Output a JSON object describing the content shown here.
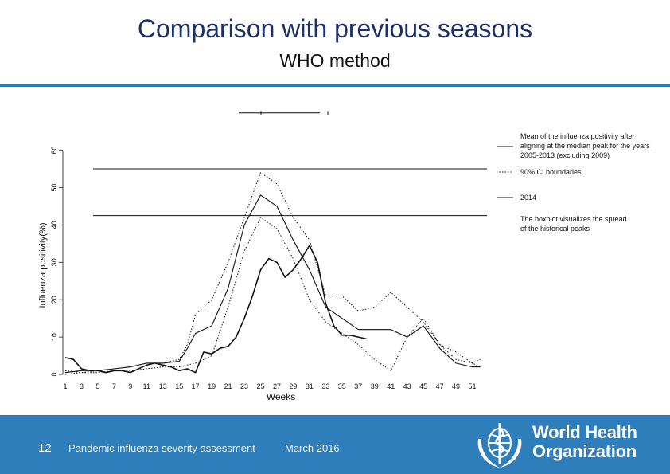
{
  "header": {
    "title": "Comparison with previous seasons",
    "subtitle": "WHO method"
  },
  "footer": {
    "page_number": "12",
    "text": "Pandemic influenza severity assessment",
    "date": "March 2016",
    "org_name_line1": "World Health",
    "org_name_line2": "Organization",
    "logo_icon": "who-emblem-icon"
  },
  "colors": {
    "title": "#1c2f66",
    "accent_rule": "#2f79b9",
    "footer_bg": "#2f7ebc"
  },
  "chart_data": {
    "type": "line",
    "xlabel": "Weeks",
    "ylabel": "Influenza positivity(%)",
    "xlim": [
      1,
      52
    ],
    "ylim": [
      0,
      60
    ],
    "x_ticks": [
      1,
      3,
      5,
      7,
      9,
      11,
      13,
      15,
      17,
      19,
      21,
      23,
      25,
      27,
      29,
      31,
      33,
      35,
      37,
      39,
      41,
      43,
      45,
      47,
      49,
      51
    ],
    "y_ticks": [
      0,
      10,
      20,
      30,
      40,
      50,
      60
    ],
    "reference_lines": [
      55,
      42.5
    ],
    "legend": [
      {
        "style": "solid",
        "label_lines": [
          "Mean of the influenza positivity after",
          "aligning at the median peak for the years",
          "2005-2013 (excluding 2009)"
        ]
      },
      {
        "style": "dotted",
        "label_lines": [
          "90% CI boundaries"
        ]
      },
      {
        "style": "solid",
        "label_lines": [
          "2014"
        ]
      },
      {
        "style": "none",
        "label_lines": [
          "The boxplot visualizes the spread",
          "of the historical peaks"
        ]
      }
    ],
    "boxplot": {
      "min": 69.5,
      "max": 70.5,
      "value": 70
    },
    "series": [
      {
        "style": "dotted",
        "x": [
          1,
          3,
          5,
          7,
          9,
          11,
          13,
          15,
          16,
          17,
          19,
          21,
          23,
          25,
          27,
          29,
          31,
          33,
          35,
          37,
          39,
          41,
          43,
          45,
          47,
          49,
          51,
          52
        ],
        "y": [
          1,
          0.5,
          1,
          1.5,
          2,
          3,
          3,
          4,
          8,
          16,
          20,
          30,
          42,
          54,
          51,
          42,
          36,
          21,
          21,
          17,
          18,
          22,
          18,
          14,
          8,
          4,
          3,
          4
        ]
      },
      {
        "style": "solid",
        "x": [
          1,
          3,
          5,
          7,
          9,
          11,
          13,
          15,
          16,
          17,
          19,
          21,
          23,
          25,
          27,
          29,
          31,
          33,
          35,
          37,
          39,
          41,
          43,
          45,
          47,
          49,
          51,
          52
        ],
        "y": [
          0.5,
          1,
          1,
          1.5,
          2,
          3,
          3,
          3.5,
          7,
          11,
          13,
          23,
          40,
          48,
          45,
          36,
          28,
          18,
          15,
          12,
          12,
          12,
          10,
          13,
          7,
          3,
          2,
          2
        ]
      },
      {
        "style": "dotted",
        "x": [
          1,
          3,
          5,
          7,
          9,
          11,
          13,
          15,
          17,
          19,
          21,
          23,
          25,
          27,
          29,
          31,
          33,
          35,
          37,
          39,
          41,
          43,
          45,
          47,
          49,
          51,
          52
        ],
        "y": [
          0,
          0.5,
          0.5,
          1,
          1,
          1.5,
          2,
          2,
          3,
          5,
          18,
          33,
          42,
          39,
          31,
          20,
          14,
          11,
          8,
          4,
          1,
          10,
          15,
          8,
          6,
          3,
          2
        ]
      },
      {
        "style": "solid",
        "x": [
          1,
          2,
          3,
          4,
          5,
          6,
          7,
          8,
          9,
          10,
          11,
          12,
          13,
          14,
          15,
          16,
          17,
          18,
          19,
          20,
          21,
          22,
          23,
          24,
          25,
          26,
          27,
          28,
          29,
          30,
          31,
          32,
          33,
          34,
          35,
          36,
          37,
          38
        ],
        "y": [
          4.5,
          4,
          1.5,
          1,
          1,
          0.5,
          1,
          1,
          0.5,
          1.5,
          2.5,
          3,
          2.5,
          2,
          1,
          1.5,
          0.5,
          6,
          5.5,
          7,
          7.5,
          10,
          15,
          21,
          28,
          31,
          30,
          26,
          28,
          31,
          34.5,
          30,
          19,
          13,
          10.5,
          10.5,
          10,
          9.5
        ]
      }
    ]
  }
}
